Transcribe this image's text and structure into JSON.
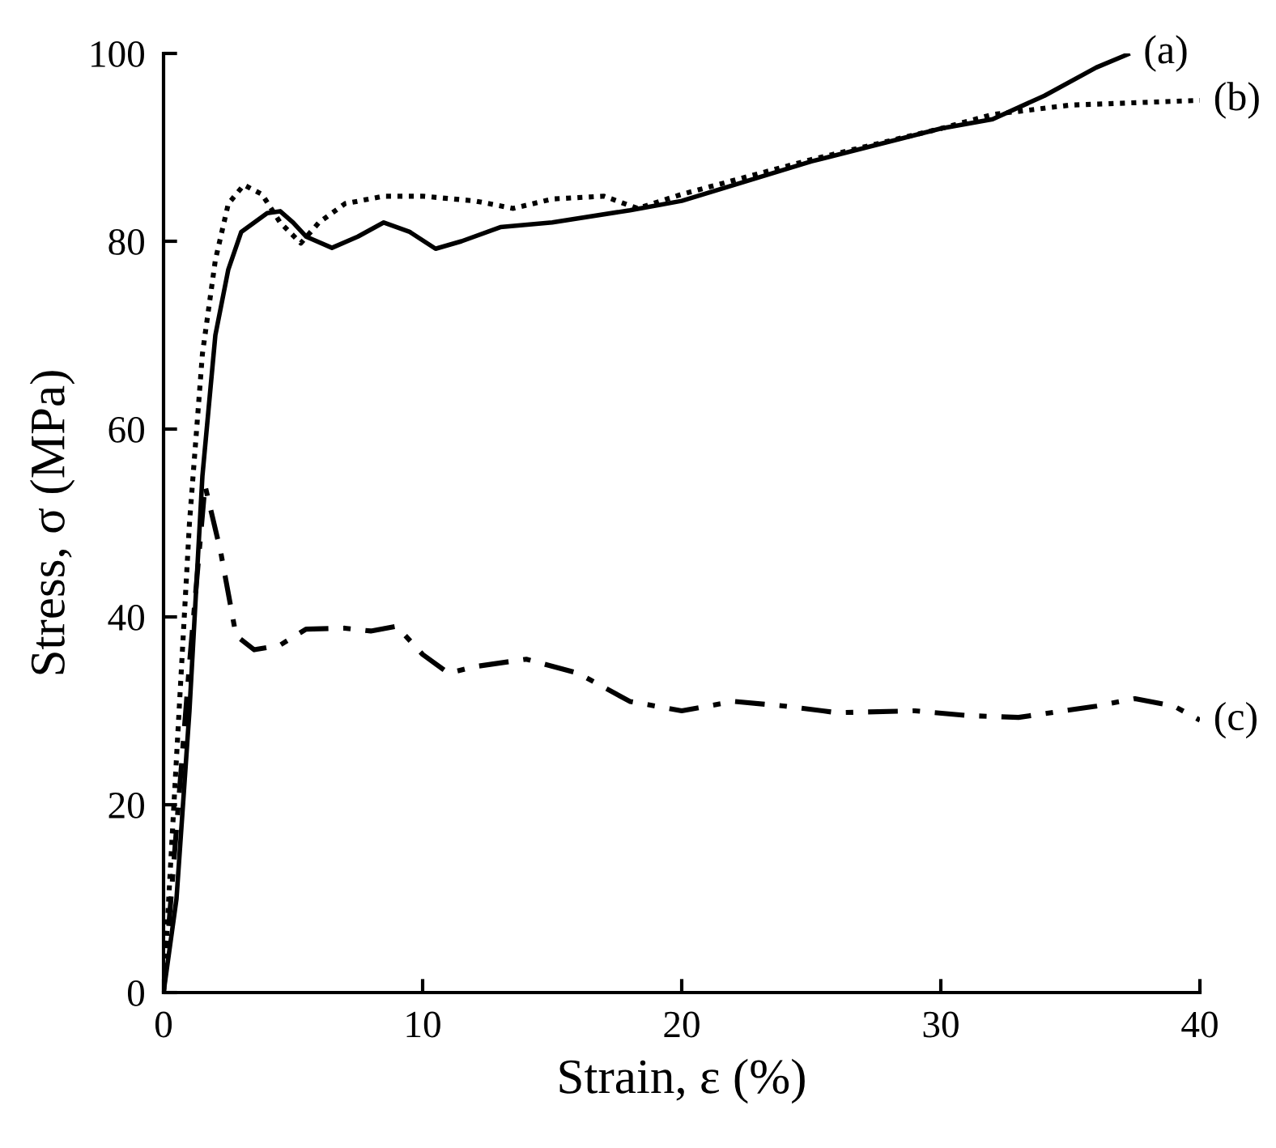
{
  "chart_data": {
    "type": "line",
    "xlabel": "Strain, ε (%)",
    "ylabel": "Stress, σ (MPa)",
    "xlim": [
      0,
      40
    ],
    "ylim": [
      0,
      100
    ],
    "xticks": [
      0,
      10,
      20,
      30,
      40
    ],
    "yticks": [
      0,
      20,
      40,
      60,
      80,
      100
    ],
    "grid": false,
    "legend": false,
    "marker": "none",
    "series": [
      {
        "name": "(a)",
        "color": "#000000",
        "line_style": "solid",
        "x": [
          0,
          0.5,
          1,
          1.5,
          2,
          2.5,
          3,
          4,
          4.5,
          5,
          5.5,
          6.5,
          7.5,
          8.5,
          9.5,
          10.5,
          11.5,
          13,
          15,
          18,
          20,
          25,
          30,
          32,
          34,
          36,
          37.3
        ],
        "values": [
          0,
          10,
          30,
          55,
          70,
          77,
          81,
          83,
          83.2,
          82,
          80.5,
          79.3,
          80.5,
          82,
          81,
          79.2,
          80,
          81.5,
          82,
          83.3,
          84.3,
          88.5,
          92,
          93,
          95.5,
          98.5,
          100
        ]
      },
      {
        "name": "(b)",
        "color": "#000000",
        "line_style": "dotted",
        "x": [
          0,
          0.5,
          1,
          1.5,
          2,
          2.5,
          3.1,
          3.8,
          4.5,
          5.3,
          6,
          7,
          8.5,
          10,
          12,
          13.5,
          15,
          17,
          18.3,
          20,
          25,
          30,
          32,
          35,
          40
        ],
        "values": [
          0,
          25,
          50,
          68,
          78,
          84,
          86,
          85,
          82,
          79.8,
          82,
          84,
          84.8,
          84.8,
          84.3,
          83.5,
          84.5,
          84.8,
          83.5,
          85,
          88.7,
          92,
          93.5,
          94.5,
          95
        ]
      },
      {
        "name": "(c)",
        "color": "#000000",
        "line_style": "dashdot",
        "x": [
          0,
          1,
          1.6,
          2.2,
          2.8,
          3.5,
          4.5,
          5.5,
          7,
          8,
          9,
          10,
          11,
          12,
          14,
          16,
          18,
          20,
          22,
          24,
          26,
          29,
          31,
          33,
          36,
          37.5,
          39,
          40
        ],
        "values": [
          0,
          35,
          54,
          47,
          38,
          36.5,
          37,
          38.7,
          38.8,
          38.5,
          39,
          36,
          34,
          34.7,
          35.5,
          34,
          31,
          30,
          31,
          30.5,
          29.8,
          30,
          29.5,
          29.3,
          30.5,
          31.3,
          30.5,
          29
        ]
      }
    ]
  }
}
